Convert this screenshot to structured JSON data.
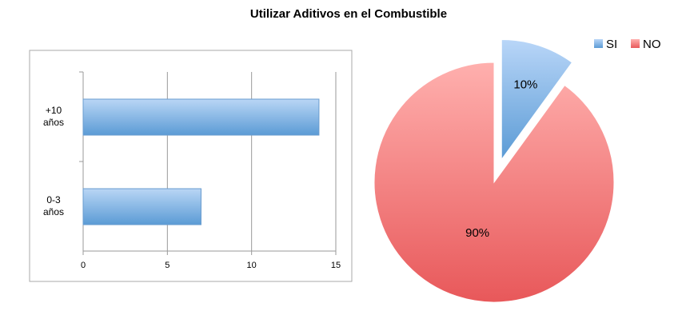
{
  "chart_data": [
    {
      "type": "bar",
      "title": "Utilizar Aditivos en el Combustible",
      "categories": [
        "0-3 años",
        "+10 años"
      ],
      "values": [
        7,
        14
      ],
      "color": "#5b9bd5",
      "xlim": [
        0,
        15
      ],
      "xticks": [
        0,
        5,
        10,
        15
      ],
      "grid": true
    },
    {
      "type": "pie",
      "categories": [
        "SI",
        "NO"
      ],
      "values": [
        10,
        90
      ],
      "value_labels": [
        "10%",
        "90%"
      ],
      "colors": [
        "#5b9bd5",
        "#e8585a"
      ],
      "legend": "top-right"
    }
  ]
}
